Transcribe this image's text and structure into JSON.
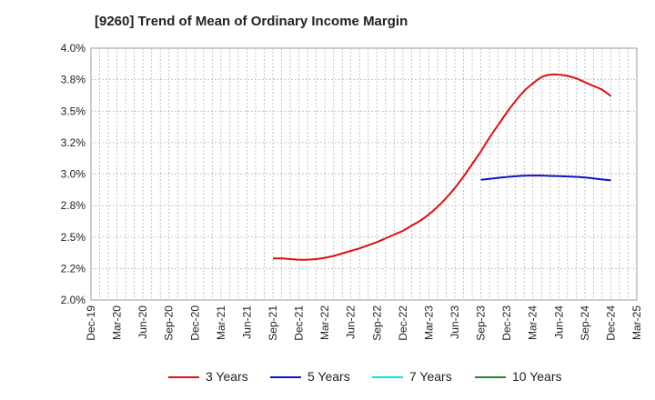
{
  "chart_data": {
    "type": "line",
    "title": "[9260]  Trend of Mean of Ordinary Income Margin",
    "xlabel": "",
    "ylabel": "",
    "x_ticks": [
      "Dec-19",
      "Mar-20",
      "Jun-20",
      "Sep-20",
      "Dec-20",
      "Mar-21",
      "Jun-21",
      "Sep-21",
      "Dec-21",
      "Mar-22",
      "Jun-22",
      "Sep-22",
      "Dec-22",
      "Mar-23",
      "Jun-23",
      "Sep-23",
      "Dec-23",
      "Mar-24",
      "Jun-24",
      "Sep-24",
      "Dec-24",
      "Mar-25"
    ],
    "y_ticks": [
      "2.0%",
      "2.2%",
      "2.5%",
      "2.8%",
      "3.0%",
      "3.2%",
      "3.5%",
      "3.8%",
      "4.0%"
    ],
    "y_tick_values": [
      2.0,
      2.25,
      2.5,
      2.75,
      3.0,
      3.25,
      3.5,
      3.75,
      4.0
    ],
    "ylim": [
      2.0,
      4.0
    ],
    "grid": true,
    "legend_position": "bottom",
    "series": [
      {
        "name": "3 Years",
        "color": "#dd1111",
        "x": [
          "Sep-21",
          "Oct-21",
          "Nov-21",
          "Dec-21",
          "Jan-22",
          "Feb-22",
          "Mar-22",
          "Apr-22",
          "May-22",
          "Jun-22",
          "Jul-22",
          "Aug-22",
          "Sep-22",
          "Oct-22",
          "Nov-22",
          "Dec-22",
          "Jan-23",
          "Feb-23",
          "Mar-23",
          "Apr-23",
          "May-23",
          "Jun-23",
          "Jul-23",
          "Aug-23",
          "Sep-23",
          "Oct-23",
          "Nov-23",
          "Dec-23",
          "Jan-24",
          "Feb-24",
          "Mar-24",
          "Apr-24",
          "May-24",
          "Jun-24",
          "Jul-24",
          "Aug-24",
          "Sep-24",
          "Oct-24",
          "Nov-24",
          "Dec-24"
        ],
        "y": [
          2.33,
          2.33,
          2.325,
          2.32,
          2.32,
          2.325,
          2.335,
          2.35,
          2.37,
          2.39,
          2.41,
          2.435,
          2.46,
          2.49,
          2.52,
          2.55,
          2.59,
          2.63,
          2.68,
          2.74,
          2.81,
          2.89,
          2.98,
          3.08,
          3.18,
          3.29,
          3.39,
          3.49,
          3.58,
          3.66,
          3.72,
          3.77,
          3.79,
          3.79,
          3.78,
          3.76,
          3.73,
          3.7,
          3.67,
          3.62
        ]
      },
      {
        "name": "5 Years",
        "color": "#1111cc",
        "x": [
          "Sep-23",
          "Oct-23",
          "Nov-23",
          "Dec-23",
          "Jan-24",
          "Feb-24",
          "Mar-24",
          "Apr-24",
          "May-24",
          "Jun-24",
          "Jul-24",
          "Aug-24",
          "Sep-24",
          "Oct-24",
          "Nov-24",
          "Dec-24"
        ],
        "y": [
          2.955,
          2.962,
          2.97,
          2.977,
          2.983,
          2.987,
          2.988,
          2.988,
          2.986,
          2.984,
          2.981,
          2.978,
          2.973,
          2.966,
          2.958,
          2.95
        ]
      },
      {
        "name": "7 Years",
        "color": "#00e5ee",
        "x": [],
        "y": []
      },
      {
        "name": "10 Years",
        "color": "#228822",
        "x": [],
        "y": []
      }
    ]
  }
}
